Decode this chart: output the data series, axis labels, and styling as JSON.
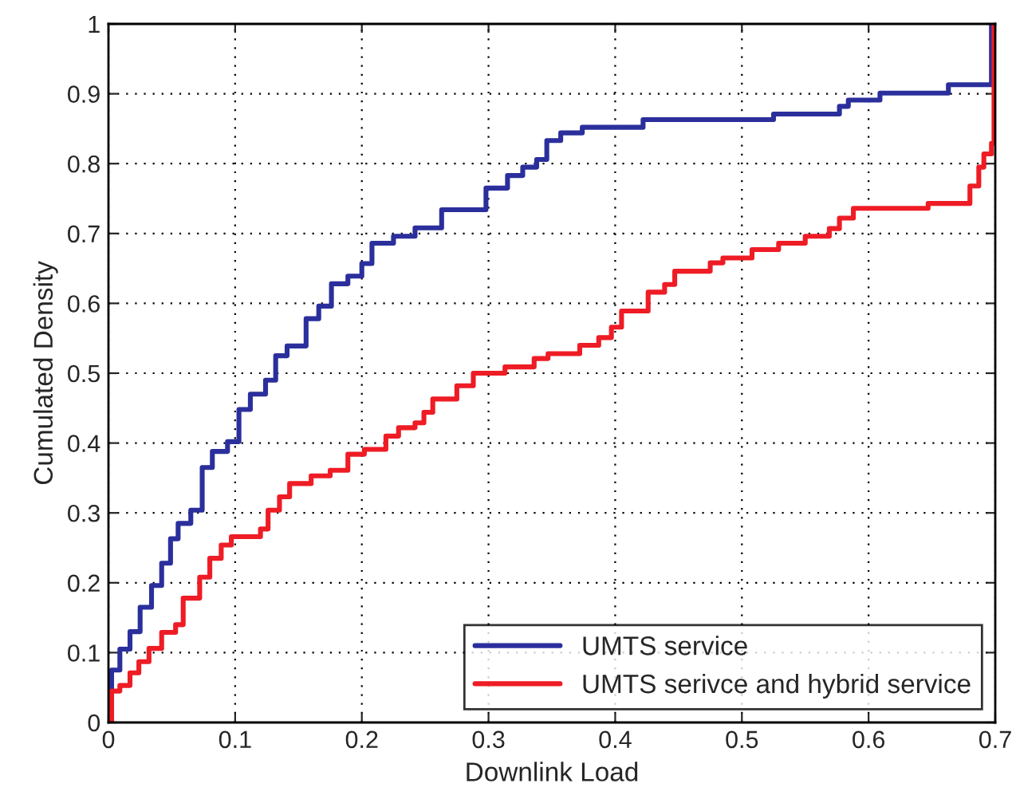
{
  "chart_data": {
    "type": "step",
    "xlabel": "Downlink Load",
    "ylabel": "Cumulated Density",
    "xlim": [
      0,
      0.7
    ],
    "ylim": [
      0,
      1
    ],
    "xticks": [
      0,
      0.1,
      0.2,
      0.3,
      0.4,
      0.5,
      0.6,
      0.7
    ],
    "yticks": [
      0,
      0.1,
      0.2,
      0.3,
      0.4,
      0.5,
      0.6,
      0.7,
      0.8,
      0.9,
      1
    ],
    "grid": true,
    "legend": "bottom right",
    "line_style": "solid",
    "marker": "none",
    "series": [
      {
        "name": "UMTS service",
        "color": "#2b2f9c",
        "x": [
          0,
          0.0025,
          0.009,
          0.017,
          0.025,
          0.034,
          0.042,
          0.049,
          0.055,
          0.065,
          0.074,
          0.082,
          0.094,
          0.103,
          0.112,
          0.124,
          0.132,
          0.141,
          0.156,
          0.166,
          0.176,
          0.189,
          0.2,
          0.208,
          0.225,
          0.242,
          0.263,
          0.298,
          0.315,
          0.327,
          0.338,
          0.346,
          0.357,
          0.374,
          0.422,
          0.525,
          0.577,
          0.584,
          0.609,
          0.663,
          0.697,
          0.7
        ],
        "values": [
          0,
          0.075,
          0.105,
          0.13,
          0.165,
          0.196,
          0.228,
          0.263,
          0.285,
          0.304,
          0.365,
          0.388,
          0.402,
          0.448,
          0.47,
          0.49,
          0.525,
          0.539,
          0.578,
          0.596,
          0.628,
          0.639,
          0.657,
          0.686,
          0.696,
          0.708,
          0.734,
          0.765,
          0.783,
          0.795,
          0.806,
          0.833,
          0.844,
          0.852,
          0.863,
          0.871,
          0.882,
          0.891,
          0.901,
          0.913,
          1,
          1
        ]
      },
      {
        "name": "UMTS serivce and hybrid service",
        "color": "#ee1c25",
        "x": [
          0,
          0.0025,
          0.009,
          0.017,
          0.024,
          0.032,
          0.042,
          0.053,
          0.059,
          0.072,
          0.08,
          0.089,
          0.097,
          0.12,
          0.126,
          0.135,
          0.143,
          0.16,
          0.175,
          0.189,
          0.202,
          0.219,
          0.229,
          0.242,
          0.249,
          0.256,
          0.275,
          0.288,
          0.313,
          0.336,
          0.347,
          0.372,
          0.387,
          0.397,
          0.405,
          0.426,
          0.439,
          0.447,
          0.475,
          0.485,
          0.508,
          0.529,
          0.55,
          0.569,
          0.577,
          0.588,
          0.647,
          0.68,
          0.687,
          0.691,
          0.697,
          0.699,
          0.7
        ],
        "values": [
          0,
          0.045,
          0.053,
          0.071,
          0.087,
          0.106,
          0.129,
          0.14,
          0.178,
          0.208,
          0.235,
          0.254,
          0.266,
          0.277,
          0.304,
          0.323,
          0.342,
          0.353,
          0.361,
          0.384,
          0.391,
          0.41,
          0.422,
          0.429,
          0.444,
          0.463,
          0.482,
          0.5,
          0.509,
          0.521,
          0.528,
          0.54,
          0.551,
          0.566,
          0.589,
          0.616,
          0.627,
          0.646,
          0.658,
          0.665,
          0.677,
          0.686,
          0.696,
          0.707,
          0.722,
          0.736,
          0.743,
          0.768,
          0.795,
          0.814,
          0.829,
          1,
          1
        ]
      }
    ]
  }
}
